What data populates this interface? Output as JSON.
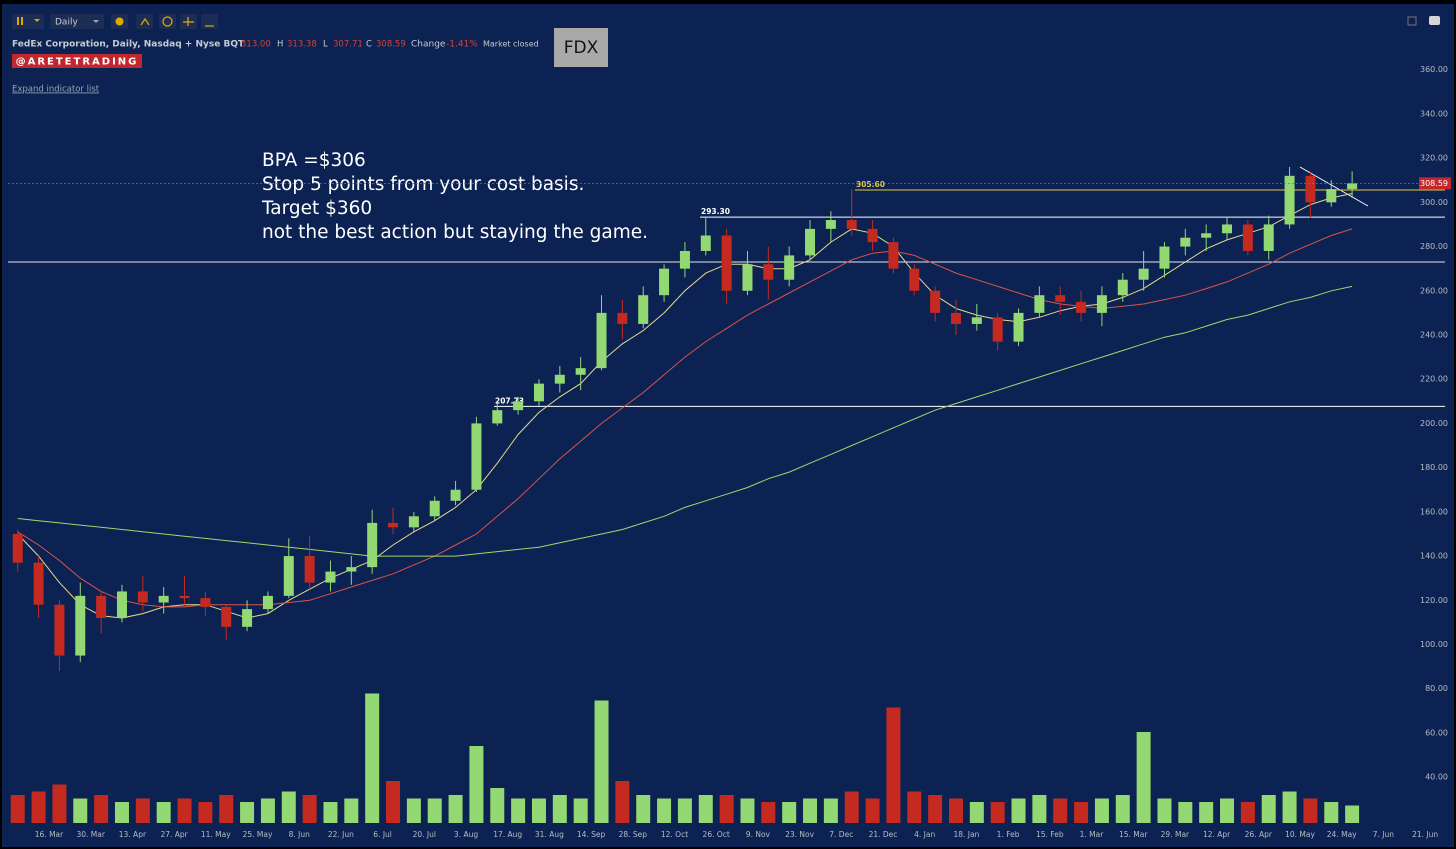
{
  "header": {
    "interval": "Daily",
    "title": "FedEx Corporation, Daily, Nasdaq + Nyse BQT",
    "ohlc": [
      {
        "key": "O",
        "value": "313.00"
      },
      {
        "key": "H",
        "value": "313.38"
      },
      {
        "key": "L",
        "value": "307.71"
      },
      {
        "key": "C",
        "value": "308.59"
      }
    ],
    "change_label": "Change",
    "change": "-1.41%",
    "status": "Market closed",
    "watermark": "@ARETETRADING",
    "expand_link": "Expand indicator list",
    "symbol": "FDX"
  },
  "annotation": [
    "BPA =$306",
    "Stop 5 points from your cost basis.",
    "Target $360",
    "not the best action but staying the game."
  ],
  "chart_data": {
    "type": "candlestick",
    "categories": [
      null,
      null,
      "16. Mar",
      null,
      "30. Mar",
      null,
      "13. Apr",
      null,
      "27. Apr",
      null,
      "11. May",
      null,
      "25. May",
      null,
      "8. Jun",
      null,
      "22. Jun",
      null,
      "6. Jul",
      null,
      "20. Jul",
      null,
      "3. Aug",
      null,
      "17. Aug",
      null,
      "31. Aug",
      null,
      "14. Sep",
      null,
      "28. Sep",
      null,
      "12. Oct",
      null,
      "26. Oct",
      null,
      "9. Nov",
      null,
      "23. Nov",
      null,
      "7. Dec",
      null,
      "21. Dec",
      null,
      "4. Jan",
      null,
      "18. Jan",
      null,
      "1. Feb",
      null,
      "15. Feb",
      null,
      "1. Mar",
      null,
      "15. Mar",
      null,
      "29. Mar",
      null,
      "12. Apr",
      null,
      "26. Apr",
      null,
      "10. May",
      null,
      "24. May",
      null,
      "7. Jun",
      null,
      "21. Jun"
    ],
    "open": [
      150,
      137,
      118,
      95,
      122,
      112,
      124,
      119,
      122,
      121,
      117,
      108,
      116,
      122,
      140,
      128,
      133,
      135,
      155,
      153,
      158,
      165,
      170,
      200,
      206,
      210,
      218,
      222,
      225,
      250,
      245,
      258,
      270,
      278,
      285,
      260,
      272,
      265,
      276,
      288,
      292,
      288,
      282,
      270,
      260,
      250,
      245,
      248,
      237,
      250,
      258,
      255,
      250,
      258,
      265,
      270,
      280,
      284,
      286,
      290,
      278,
      290,
      312,
      300,
      306,
      null,
      null,
      null,
      null
    ],
    "high": [
      152,
      140,
      120,
      128,
      124,
      127,
      131,
      126,
      131,
      124,
      118,
      120,
      124,
      148,
      149,
      138,
      140,
      161,
      162,
      160,
      167,
      174,
      203,
      209,
      212,
      220,
      226,
      230,
      258,
      256,
      262,
      272,
      282,
      293,
      288,
      278,
      280,
      280,
      292,
      296,
      306,
      292,
      284,
      272,
      262,
      256,
      254,
      250,
      252,
      262,
      262,
      260,
      262,
      268,
      278,
      282,
      288,
      290,
      293,
      292,
      294,
      316,
      314,
      310,
      314,
      null,
      null,
      null,
      null
    ],
    "low": [
      133,
      112,
      88,
      92,
      105,
      110,
      115,
      114,
      118,
      113,
      102,
      106,
      114,
      121,
      125,
      124,
      127,
      132,
      150,
      151,
      156,
      163,
      169,
      199,
      204,
      208,
      214,
      215,
      224,
      238,
      243,
      255,
      266,
      276,
      254,
      258,
      256,
      262,
      274,
      282,
      285,
      278,
      268,
      258,
      246,
      240,
      242,
      233,
      235,
      248,
      249,
      246,
      244,
      255,
      260,
      266,
      276,
      278,
      283,
      276,
      274,
      288,
      293,
      298,
      302,
      null,
      null,
      null,
      null
    ],
    "close": [
      137,
      118,
      95,
      122,
      112,
      124,
      119,
      122,
      121,
      117,
      108,
      116,
      122,
      140,
      128,
      133,
      135,
      155,
      153,
      158,
      165,
      170,
      200,
      206,
      210,
      218,
      222,
      225,
      250,
      245,
      258,
      270,
      278,
      285,
      260,
      272,
      265,
      276,
      288,
      292,
      288,
      282,
      270,
      260,
      250,
      245,
      248,
      237,
      250,
      258,
      255,
      250,
      258,
      265,
      270,
      280,
      284,
      286,
      290,
      278,
      290,
      312,
      300,
      306,
      308.59,
      null,
      null,
      null,
      null
    ],
    "up_color": "#93d873",
    "down_color": "#c42a20",
    "moving_averages": [
      {
        "color": "#e8d98a",
        "values": [
          150,
          140,
          128,
          118,
          113,
          112,
          114,
          117,
          118,
          118,
          115,
          112,
          114,
          120,
          125,
          130,
          134,
          138,
          145,
          151,
          156,
          162,
          170,
          182,
          195,
          205,
          212,
          218,
          228,
          236,
          242,
          250,
          260,
          268,
          272,
          272,
          270,
          270,
          274,
          282,
          288,
          286,
          280,
          268,
          258,
          252,
          249,
          247,
          246,
          248,
          251,
          253,
          254,
          257,
          261,
          267,
          273,
          279,
          283,
          286,
          289,
          294,
          299,
          302,
          304,
          null,
          null,
          null,
          null
        ]
      },
      {
        "color": "#d9544a",
        "values": [
          151,
          145,
          138,
          130,
          124,
          120,
          118,
          117,
          117,
          118,
          118,
          118,
          118,
          119,
          120,
          123,
          126,
          129,
          132,
          136,
          140,
          145,
          150,
          158,
          166,
          175,
          184,
          192,
          200,
          207,
          214,
          222,
          230,
          237,
          243,
          249,
          254,
          259,
          264,
          269,
          274,
          277,
          278,
          276,
          272,
          268,
          265,
          262,
          259,
          256,
          254,
          253,
          252,
          253,
          254,
          256,
          258,
          261,
          264,
          268,
          272,
          277,
          281,
          285,
          288,
          null,
          null,
          null,
          null
        ]
      },
      {
        "color": "#a9d46c",
        "values": [
          157,
          156,
          155,
          154,
          153,
          152,
          151,
          150,
          149,
          148,
          147,
          146,
          145,
          144,
          143,
          142,
          141,
          140,
          140,
          140,
          140,
          140,
          141,
          142,
          143,
          144,
          146,
          148,
          150,
          152,
          155,
          158,
          162,
          165,
          168,
          171,
          175,
          178,
          182,
          186,
          190,
          194,
          198,
          202,
          206,
          209,
          212,
          215,
          218,
          221,
          224,
          227,
          230,
          233,
          236,
          239,
          241,
          244,
          247,
          249,
          252,
          255,
          257,
          260,
          262,
          null,
          null,
          null,
          null
        ]
      }
    ],
    "volume": {
      "ylim": [
        0,
        40
      ],
      "values": [
        8,
        9,
        11,
        7,
        8,
        6,
        7,
        6,
        7,
        6,
        8,
        6,
        7,
        9,
        8,
        6,
        7,
        37,
        12,
        7,
        7,
        8,
        22,
        10,
        7,
        7,
        8,
        7,
        35,
        12,
        8,
        7,
        7,
        8,
        8,
        7,
        6,
        6,
        7,
        7,
        9,
        7,
        33,
        9,
        8,
        7,
        6,
        6,
        7,
        8,
        7,
        6,
        7,
        8,
        26,
        7,
        6,
        6,
        7,
        6,
        8,
        9,
        7,
        6,
        5,
        null,
        null,
        null,
        null
      ]
    },
    "levels": [
      {
        "value": 207.73,
        "label": "207.73",
        "color": "#ffffff"
      },
      {
        "value": 293.3,
        "label": "293.30",
        "color": "#ffffff"
      },
      {
        "value": 305.6,
        "label": "305.60",
        "color": "#e6c84a"
      }
    ],
    "support": 273,
    "last_price": 308.59,
    "ylim": [
      17,
      387
    ],
    "yticks": [
      {
        "value": 40,
        "label": "40.00"
      },
      {
        "value": 60,
        "label": "60.00"
      },
      {
        "value": 80,
        "label": "80.00"
      },
      {
        "value": 100,
        "label": "100.00"
      },
      {
        "value": 120,
        "label": "120.00"
      },
      {
        "value": 140,
        "label": "140.00"
      },
      {
        "value": 160,
        "label": "160.00"
      },
      {
        "value": 180,
        "label": "180.00"
      },
      {
        "value": 200,
        "label": "200.00"
      },
      {
        "value": 220,
        "label": "220.00"
      },
      {
        "value": 240,
        "label": "240.00"
      },
      {
        "value": 260,
        "label": "260.00"
      },
      {
        "value": 280,
        "label": "280.00"
      },
      {
        "value": 300,
        "label": "300.00"
      },
      {
        "value": 320,
        "label": "320.00"
      },
      {
        "value": 340,
        "label": "340.00"
      },
      {
        "value": 360,
        "label": "360.00"
      }
    ],
    "grid": false
  }
}
